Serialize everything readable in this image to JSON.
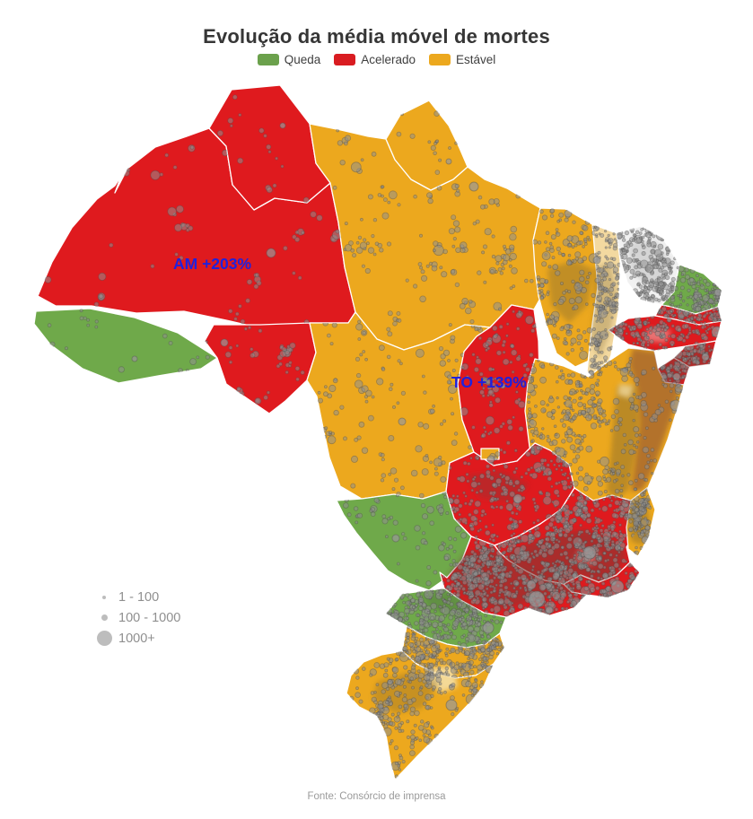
{
  "title": "Evolução da média móvel de mortes",
  "legend": {
    "items": [
      {
        "label": "Queda",
        "color": "#6ba14c"
      },
      {
        "label": "Acelerado",
        "color": "#d91c21"
      },
      {
        "label": "Estável",
        "color": "#eca81e"
      }
    ]
  },
  "annotations": [
    {
      "text": "AM +203%",
      "color": "#1f21dd"
    },
    {
      "text": "TO +139%",
      "color": "#1f21dd"
    }
  ],
  "size_legend": {
    "dot_color": "#bdbdbd",
    "items": [
      {
        "label": "1 - 100"
      },
      {
        "label": "100 - 1000"
      },
      {
        "label": "1000+"
      }
    ]
  },
  "source": "Fonte: Consórcio de imprensa",
  "map": {
    "dot_color": "#8f8f8f",
    "category_colors": {
      "Queda": "#6fa94a",
      "Acelerado": "#df1a1e",
      "Estável": "#eca81e"
    },
    "neutral_fills": {
      "CE": "#f1f1f1",
      "PI": "#f3d9a0"
    },
    "states": [
      {
        "id": "RR",
        "name": "Roraima",
        "category": "Acelerado"
      },
      {
        "id": "AP",
        "name": "Amapá",
        "category": "Estável"
      },
      {
        "id": "AM",
        "name": "Amazonas",
        "category": "Acelerado"
      },
      {
        "id": "PA",
        "name": "Pará",
        "category": "Estável"
      },
      {
        "id": "AC",
        "name": "Acre",
        "category": "Queda"
      },
      {
        "id": "RO",
        "name": "Rondônia",
        "category": "Acelerado"
      },
      {
        "id": "MT",
        "name": "Mato Grosso",
        "category": "Estável"
      },
      {
        "id": "TO",
        "name": "Tocantins",
        "category": "Acelerado"
      },
      {
        "id": "MA",
        "name": "Maranhão",
        "category": "Estável"
      },
      {
        "id": "PI",
        "name": "Piauí",
        "category": null
      },
      {
        "id": "CE",
        "name": "Ceará",
        "category": null
      },
      {
        "id": "RN",
        "name": "Rio Grande do Norte",
        "category": "Queda"
      },
      {
        "id": "PB",
        "name": "Paraíba",
        "category": "Acelerado"
      },
      {
        "id": "PE",
        "name": "Pernambuco",
        "category": "Acelerado"
      },
      {
        "id": "AL",
        "name": "Alagoas",
        "category": "Acelerado"
      },
      {
        "id": "SE",
        "name": "Sergipe",
        "category": "Acelerado"
      },
      {
        "id": "BA",
        "name": "Bahia",
        "category": "Estável"
      },
      {
        "id": "GO",
        "name": "Goiás",
        "category": "Acelerado"
      },
      {
        "id": "DF",
        "name": "Distrito Federal",
        "category": "Estável"
      },
      {
        "id": "MG",
        "name": "Minas Gerais",
        "category": "Acelerado"
      },
      {
        "id": "ES",
        "name": "Espírito Santo",
        "category": "Estável"
      },
      {
        "id": "RJ",
        "name": "Rio de Janeiro",
        "category": "Acelerado"
      },
      {
        "id": "SP",
        "name": "São Paulo",
        "category": "Acelerado"
      },
      {
        "id": "MS",
        "name": "Mato Grosso do Sul",
        "category": "Queda"
      },
      {
        "id": "PR",
        "name": "Paraná",
        "category": "Queda"
      },
      {
        "id": "SC",
        "name": "Santa Catarina",
        "category": "Estável"
      },
      {
        "id": "RS",
        "name": "Rio Grande do Sul",
        "category": "Estável"
      }
    ]
  }
}
